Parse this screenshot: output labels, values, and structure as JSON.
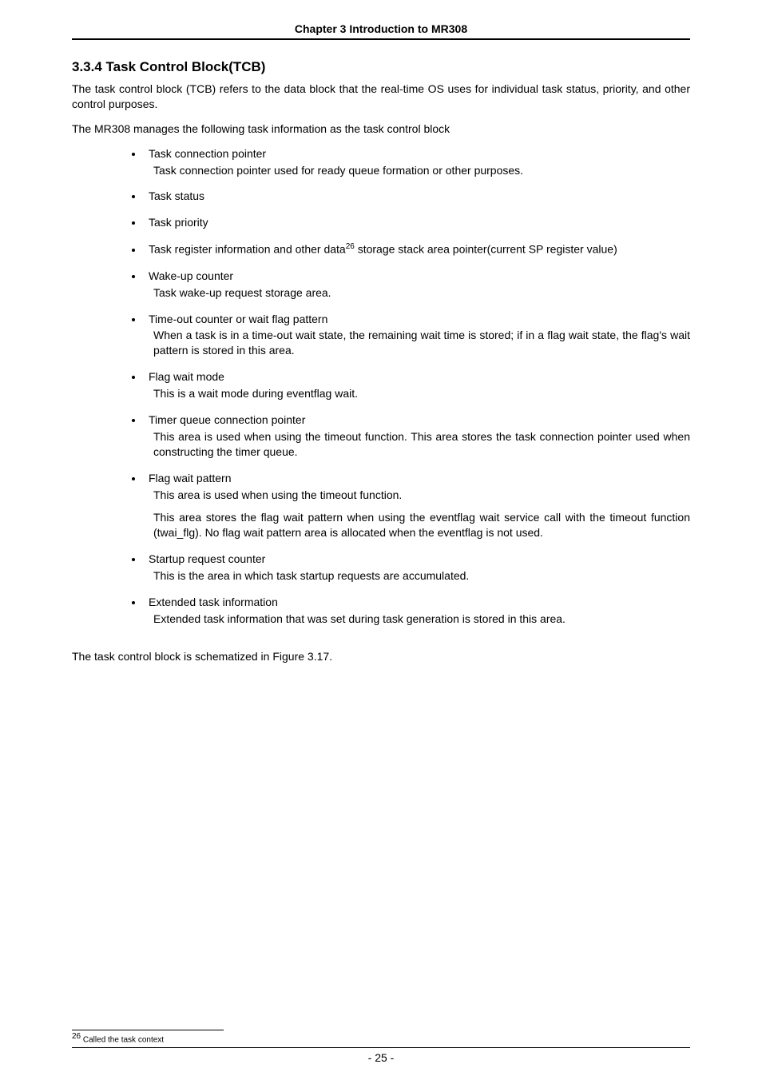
{
  "header": {
    "title": "Chapter 3 Introduction to MR308"
  },
  "section": {
    "number_title": "3.3.4      Task Control Block(TCB)"
  },
  "intro": {
    "p1": "The task control block (TCB) refers to the data block that the real-time OS uses for individual task status, priority, and other control purposes.",
    "p2": "The MR308 manages the following task information as the task control block"
  },
  "bullets": [
    {
      "title": "Task connection pointer",
      "desc": "Task connection pointer used for ready queue formation or other purposes."
    },
    {
      "title": "Task status"
    },
    {
      "title": "Task priority"
    },
    {
      "title_pre": "Task register information and other data",
      "sup": "26",
      "title_post": "  storage stack area pointer(current SP register value)"
    },
    {
      "title": "Wake-up counter",
      "desc": "Task wake-up request storage area."
    },
    {
      "title": "Time-out counter or wait flag pattern",
      "desc": "When a task is in a time-out wait state, the remaining wait time is stored; if in a flag wait state, the flag's wait pattern is stored in this area."
    },
    {
      "title": "Flag wait mode",
      "desc": "This is a wait mode during eventflag wait."
    },
    {
      "title": "Timer queue connection pointer",
      "desc": "This area is used when using the timeout function. This area stores the task connection pointer used when constructing the timer queue."
    },
    {
      "title": "Flag wait pattern",
      "desc": "This area is used when using the timeout function.",
      "extra": "This area stores the flag wait pattern when using the eventflag wait service call with the timeout function (twai_flg). No flag wait pattern area is allocated when the eventflag is not used."
    },
    {
      "title": "Startup request counter",
      "desc": "This is the area in which task startup requests are accumulated."
    },
    {
      "title": "Extended task information",
      "desc": "Extended task information that was set during task generation is stored in this area."
    }
  ],
  "closing": "The task control block is schematized in Figure 3.17.",
  "footnote": {
    "num": "26",
    "text": " Called the task context"
  },
  "footer": {
    "page_number": "- 25 -"
  }
}
